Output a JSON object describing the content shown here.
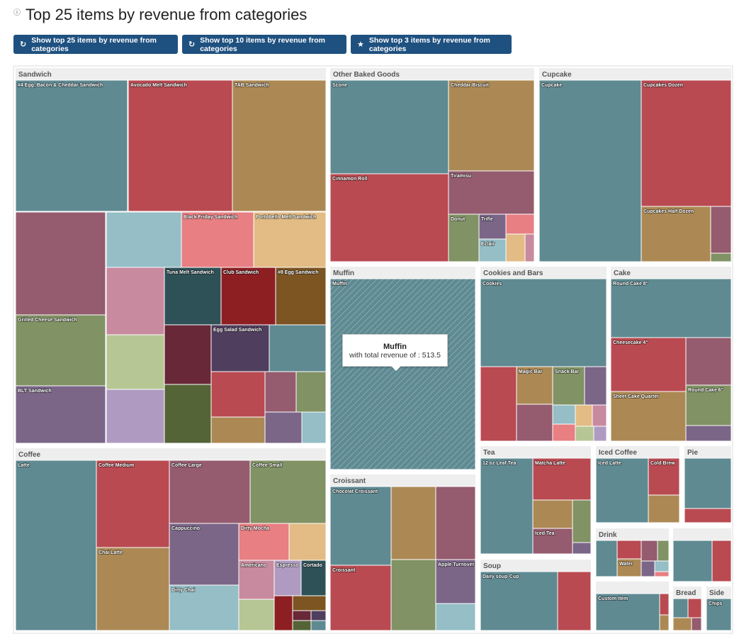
{
  "header": {
    "info_icon": "info-circle-icon",
    "title": "Top 25 items by revenue from categories"
  },
  "toolbar": {
    "btn_top25": {
      "label": "Show top 25 items by revenue from categories",
      "icon": "refresh-icon"
    },
    "btn_top10": {
      "label": "Show top 10 items by revenue from categories",
      "icon": "refresh-icon"
    },
    "btn_top3": {
      "label": "Show top 3 items by revenue from categories",
      "icon": "star-icon"
    }
  },
  "tooltip": {
    "title": "Muffin",
    "text": "with total revenue of : 513.5"
  },
  "colors": {
    "teal": "#5f8a92",
    "red": "#b94a51",
    "tan": "#ac8954",
    "mauve": "#955b6e",
    "olive": "#819264",
    "lightblue": "#95bec6",
    "pink": "#e87f83",
    "peach": "#e2bc84",
    "lightpink": "#c88a9e",
    "lightgreen": "#b6c694",
    "lavender": "#af9bc1",
    "purple": "#7b6688",
    "darkteal": "#2e5157",
    "darkred": "#8d1f23",
    "brown": "#7c5522",
    "plum": "#682838",
    "indigo": "#503e5e",
    "darkolive": "#546436",
    "category_header": "#eeeeee",
    "button": "#1f5180"
  },
  "chart_data": {
    "type": "treemap",
    "title": "Top 25 items by revenue from categories",
    "hovered": {
      "category": "Muffin",
      "item": "Muffin",
      "value": 513.5
    },
    "categories": [
      {
        "name": "Sandwich",
        "labeled_items": [
          "#4 Egg, Bacon & Cheddar Sandwich",
          "Avocado Melt Sandwich",
          "TAB Sandwich",
          "Black Friday Sandwich",
          "Portobello Melt Sandwich",
          "Tuna Melt Sandwich",
          "Club Sandwich",
          "#8 Egg Sandwich",
          "Egg Salad Sandwich",
          "Grilled Cheese Sandwich",
          "BLT Sandwich"
        ]
      },
      {
        "name": "Other Baked Goods",
        "labeled_items": [
          "Scone",
          "Cheddar Biscuit",
          "Cinnamon Roll",
          "Tiramisu",
          "Donut",
          "Trifle",
          "Eclair"
        ]
      },
      {
        "name": "Cupcake",
        "labeled_items": [
          "Cupcake",
          "Cupcakes Dozen",
          "Cupcakes Half Dozen"
        ]
      },
      {
        "name": "Muffin",
        "labeled_items": [
          "Muffin"
        ]
      },
      {
        "name": "Cookies and Bars",
        "labeled_items": [
          "Cookies",
          "Magic Bar",
          "Snack Bar"
        ]
      },
      {
        "name": "Cake",
        "labeled_items": [
          "Round Cake 8\"",
          "Cheesecake 4\"",
          "Sheet Cake Quarter",
          "Round Cake 6\""
        ]
      },
      {
        "name": "Coffee",
        "labeled_items": [
          "Latte",
          "Coffee Medium",
          "Coffee Large",
          "Coffee Small",
          "Chai Latte",
          "Cappuccino",
          "Dirty Mocha",
          "Americano",
          "Espresso",
          "Cortado",
          "Dirty Chai"
        ]
      },
      {
        "name": "Croissant",
        "labeled_items": [
          "Chocolat Croissant",
          "Croissant",
          "Apple Turnover"
        ]
      },
      {
        "name": "Tea",
        "labeled_items": [
          "12 oz Leaf Tea",
          "Matcha Latte",
          "Iced Tea"
        ]
      },
      {
        "name": "Iced Coffee",
        "labeled_items": [
          "Iced Latte",
          "Cold Brew"
        ]
      },
      {
        "name": "Pie",
        "labeled_items": []
      },
      {
        "name": "Drink",
        "labeled_items": [
          "Water"
        ]
      },
      {
        "name": "Soup",
        "labeled_items": [
          "Daily soup-Cup"
        ]
      },
      {
        "name": "Bread",
        "labeled_items": []
      },
      {
        "name": "Side",
        "labeled_items": [
          "Chips"
        ]
      },
      {
        "name": "",
        "labeled_items": [
          "Custom Item"
        ]
      }
    ]
  }
}
